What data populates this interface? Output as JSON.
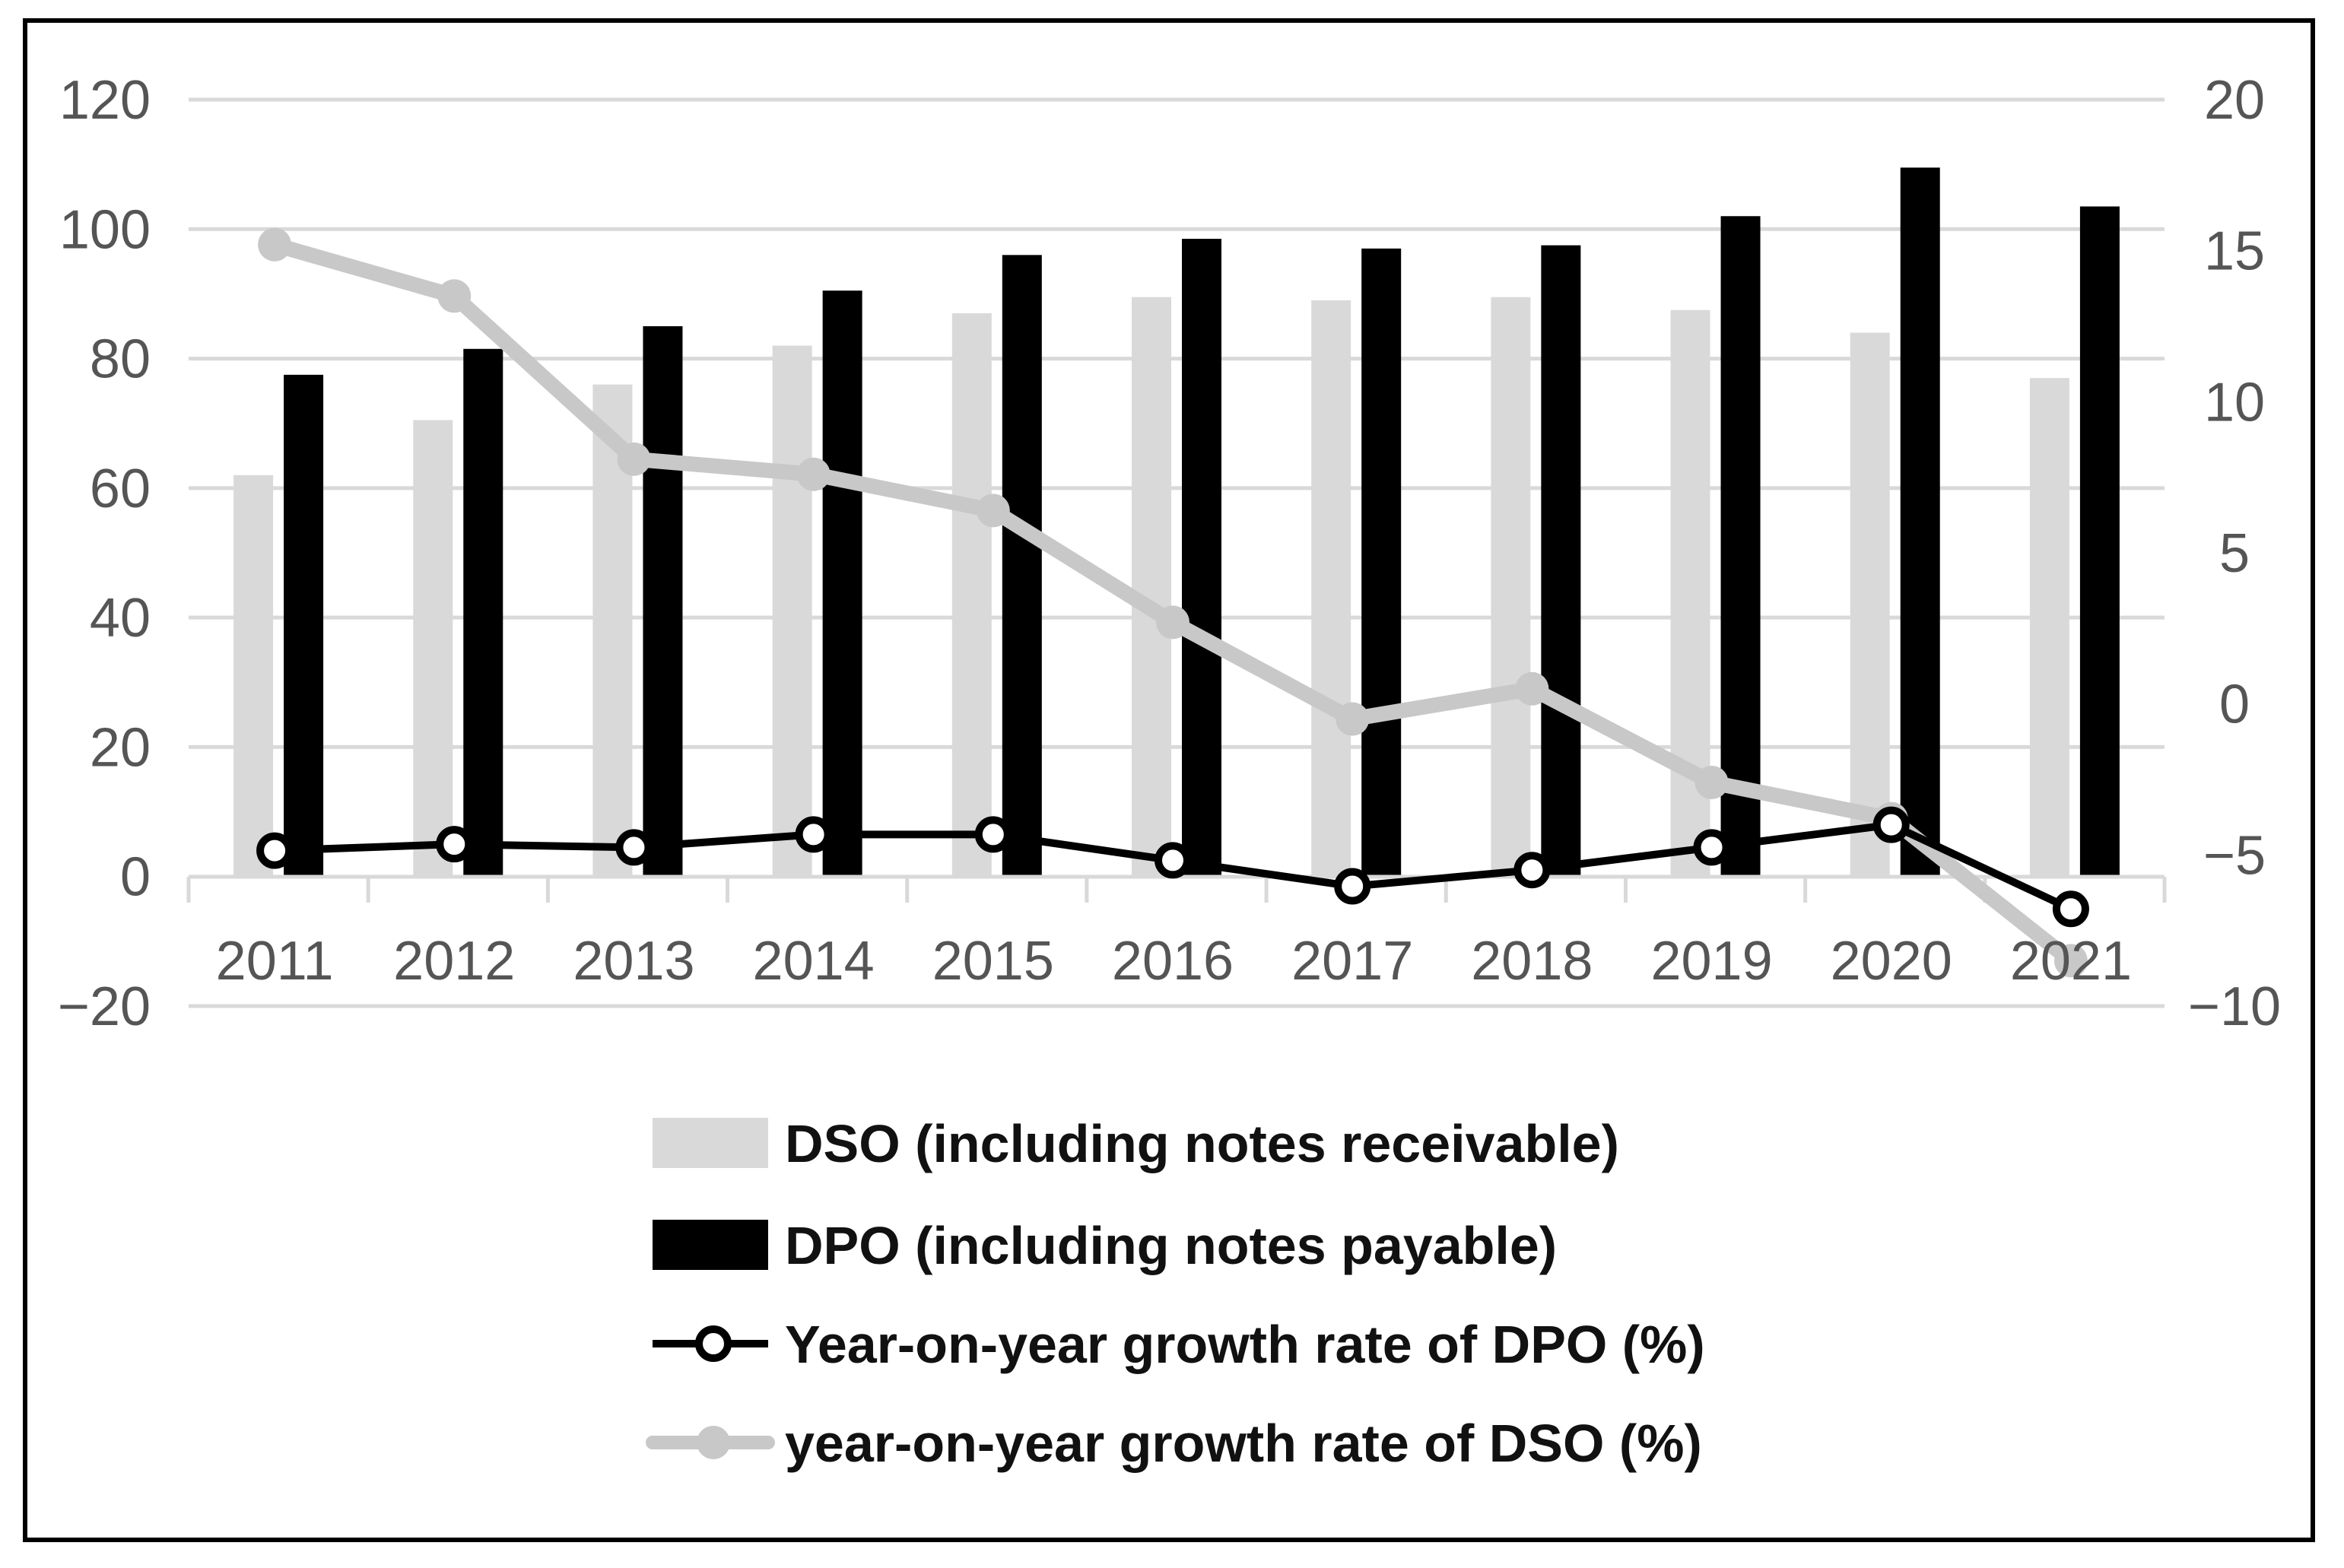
{
  "chart_data": {
    "type": "bar",
    "title": "",
    "xlabel": "",
    "ylabel": "",
    "y2label": "",
    "categories": [
      "2011",
      "2012",
      "2013",
      "2014",
      "2015",
      "2016",
      "2017",
      "2018",
      "2019",
      "2020",
      "2021"
    ],
    "ylim": [
      -20,
      120
    ],
    "y_ticks": [
      120,
      100,
      80,
      60,
      40,
      20,
      0,
      -20
    ],
    "y_tick_labels": [
      "120",
      "100",
      "80",
      "60",
      "40",
      "20",
      "0",
      "−20"
    ],
    "y2lim": [
      -10,
      20
    ],
    "y2_ticks": [
      20,
      15,
      10,
      5,
      0,
      -5,
      -10
    ],
    "y2_tick_labels": [
      "20",
      "15",
      "10",
      "5",
      "0",
      "−5",
      "−10"
    ],
    "grid": true,
    "legend_position": "bottom-center",
    "series": [
      {
        "name": "DSO (including notes receivable)",
        "type": "bar",
        "axis": "left",
        "color": "#d9d9d9",
        "values": [
          62,
          70.5,
          76,
          82,
          87,
          89.5,
          89,
          89.5,
          87.5,
          84,
          77
        ]
      },
      {
        "name": "DPO (including notes payable)",
        "type": "bar",
        "axis": "left",
        "color": "#000000",
        "values": [
          77.5,
          81.5,
          85,
          90.5,
          96,
          98.5,
          97,
          97.5,
          102,
          109.5,
          103.5
        ]
      },
      {
        "name": "Year-on-year growth rate of DPO (%)",
        "type": "line",
        "axis": "left",
        "marker": "hollow-circle",
        "color": "#000000",
        "values": [
          4,
          5,
          4.5,
          6.5,
          6.5,
          2.5,
          -1.5,
          1,
          4.5,
          8,
          -5
        ]
      },
      {
        "name": "year-on-year growth rate of DSO (%)",
        "type": "line",
        "axis": "right",
        "marker": "filled-circle",
        "color": "#c8c8c8",
        "values": [
          15.2,
          13.5,
          8.1,
          7.6,
          6.4,
          2.7,
          -0.5,
          0.5,
          -2.6,
          -3.8,
          -8.5
        ]
      }
    ]
  }
}
